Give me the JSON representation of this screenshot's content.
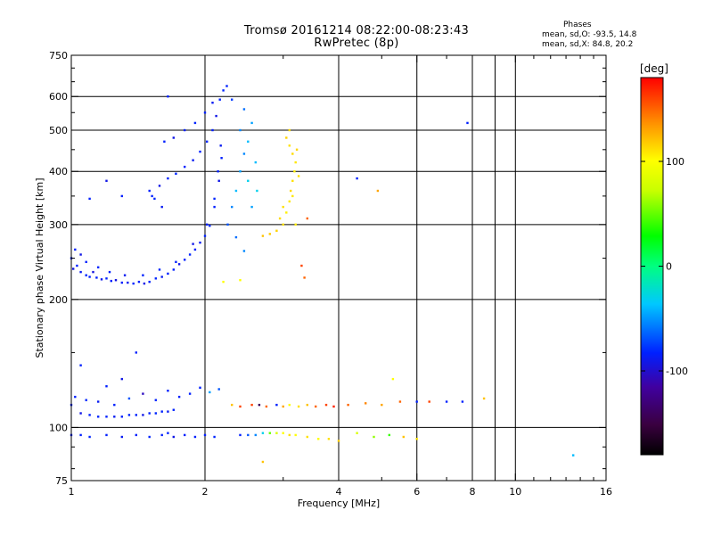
{
  "title": {
    "line1": "Tromsø 20161214 08:22:00-08:23:43",
    "line2": "RwPretec (8p)"
  },
  "stats": {
    "heading": "Phases",
    "o_mode": "mean, sd,O: -93.5, 14.8",
    "x_mode": "mean, sd,X:  84.8, 20.2"
  },
  "colorbar": {
    "unit": "[deg]",
    "range": [
      -180,
      180
    ],
    "ticks": [
      {
        "value": 100,
        "label": "100"
      },
      {
        "value": 0,
        "label": "0"
      },
      {
        "value": -100,
        "label": "-100"
      }
    ],
    "colormap": "rainbow (black-purple-blue-cyan-green-yellow-orange-red)"
  },
  "chart_data": {
    "type": "scatter",
    "xlabel": "Frequency [MHz]",
    "ylabel": "Stationary phase Virtual Height [km]",
    "xscale": "log",
    "yscale": "log",
    "xlim": [
      1,
      16
    ],
    "ylim": [
      75,
      750
    ],
    "x_ticks": [
      {
        "value": 1,
        "label": "1"
      },
      {
        "value": 2,
        "label": "2"
      },
      {
        "value": 4,
        "label": "4"
      },
      {
        "value": 6,
        "label": "6"
      },
      {
        "value": 8,
        "label": "8"
      },
      {
        "value": 10,
        "label": "10"
      },
      {
        "value": 16,
        "label": "16"
      }
    ],
    "y_ticks": [
      {
        "value": 75,
        "label": "75"
      },
      {
        "value": 100,
        "label": "100"
      },
      {
        "value": 200,
        "label": "200"
      },
      {
        "value": 300,
        "label": "300"
      },
      {
        "value": 400,
        "label": "400"
      },
      {
        "value": 500,
        "label": "500"
      },
      {
        "value": 600,
        "label": "600"
      },
      {
        "value": 750,
        "label": "750"
      }
    ],
    "x_grid": [
      2,
      4,
      6,
      8,
      9,
      10
    ],
    "y_grid": [
      100,
      200,
      300,
      400,
      500,
      600
    ],
    "point_fields": [
      "freq_MHz",
      "height_km",
      "phase_deg"
    ],
    "points": [
      [
        1.0,
        250,
        -100
      ],
      [
        1.01,
        236,
        -105
      ],
      [
        1.03,
        240,
        -100
      ],
      [
        1.05,
        232,
        -102
      ],
      [
        1.08,
        228,
        -98
      ],
      [
        1.1,
        226,
        -100
      ],
      [
        1.12,
        232,
        -105
      ],
      [
        1.14,
        225,
        -100
      ],
      [
        1.17,
        223,
        -103
      ],
      [
        1.2,
        224,
        -98
      ],
      [
        1.23,
        221,
        -100
      ],
      [
        1.26,
        222,
        -105
      ],
      [
        1.3,
        219,
        -100
      ],
      [
        1.34,
        219,
        -102
      ],
      [
        1.38,
        218,
        -98
      ],
      [
        1.42,
        220,
        -100
      ],
      [
        1.46,
        218,
        -104
      ],
      [
        1.5,
        220,
        -100
      ],
      [
        1.55,
        224,
        -98
      ],
      [
        1.6,
        226,
        -102
      ],
      [
        1.65,
        230,
        -100
      ],
      [
        1.7,
        235,
        -100
      ],
      [
        1.75,
        242,
        -104
      ],
      [
        1.8,
        248,
        -100
      ],
      [
        1.85,
        255,
        -98
      ],
      [
        1.9,
        262,
        -100
      ],
      [
        1.95,
        272,
        -102
      ],
      [
        2.0,
        282,
        -100
      ],
      [
        2.05,
        298,
        -98
      ],
      [
        2.1,
        330,
        -100
      ],
      [
        2.15,
        380,
        -104
      ],
      [
        2.18,
        430,
        -100
      ],
      [
        1.02,
        262,
        -100
      ],
      [
        1.05,
        255,
        -104
      ],
      [
        1.08,
        245,
        -100
      ],
      [
        1.15,
        238,
        -98
      ],
      [
        1.22,
        232,
        -100
      ],
      [
        1.32,
        228,
        -102
      ],
      [
        1.45,
        228,
        -100
      ],
      [
        1.58,
        235,
        -98
      ],
      [
        1.72,
        245,
        -100
      ],
      [
        1.88,
        270,
        -104
      ],
      [
        2.02,
        300,
        -100
      ],
      [
        2.1,
        345,
        -98
      ],
      [
        2.14,
        400,
        -100
      ],
      [
        2.17,
        460,
        -102
      ],
      [
        1.52,
        350,
        -100
      ],
      [
        1.58,
        370,
        -104
      ],
      [
        1.65,
        385,
        -100
      ],
      [
        1.72,
        395,
        -98
      ],
      [
        1.8,
        410,
        -100
      ],
      [
        1.88,
        425,
        -102
      ],
      [
        1.95,
        445,
        -100
      ],
      [
        2.02,
        470,
        -98
      ],
      [
        2.08,
        500,
        -100
      ],
      [
        2.12,
        540,
        -104
      ],
      [
        2.16,
        590,
        -100
      ],
      [
        2.2,
        620,
        -98
      ],
      [
        2.24,
        635,
        -100
      ],
      [
        1.62,
        470,
        -100
      ],
      [
        1.7,
        480,
        -104
      ],
      [
        1.8,
        500,
        -100
      ],
      [
        1.9,
        520,
        -98
      ],
      [
        2.0,
        550,
        -100
      ],
      [
        2.08,
        580,
        -102
      ],
      [
        1.65,
        600,
        -100
      ],
      [
        1.5,
        360,
        -100
      ],
      [
        1.54,
        345,
        -98
      ],
      [
        1.6,
        330,
        -102
      ],
      [
        1.3,
        350,
        -100
      ],
      [
        1.2,
        380,
        -104
      ],
      [
        1.1,
        345,
        -100
      ],
      [
        2.25,
        300,
        -80
      ],
      [
        2.3,
        330,
        -60
      ],
      [
        2.35,
        360,
        -40
      ],
      [
        2.4,
        400,
        -50
      ],
      [
        2.45,
        440,
        -60
      ],
      [
        2.5,
        470,
        -40
      ],
      [
        2.4,
        500,
        -60
      ],
      [
        2.45,
        560,
        -70
      ],
      [
        2.3,
        590,
        -90
      ],
      [
        2.55,
        520,
        -50
      ],
      [
        2.5,
        380,
        -30
      ],
      [
        2.6,
        420,
        -40
      ],
      [
        2.62,
        360,
        -30
      ],
      [
        2.55,
        330,
        -50
      ],
      [
        2.35,
        280,
        -70
      ],
      [
        2.45,
        260,
        -60
      ],
      [
        2.7,
        282,
        120
      ],
      [
        2.8,
        285,
        118
      ],
      [
        2.9,
        290,
        115
      ],
      [
        3.0,
        300,
        110
      ],
      [
        3.05,
        320,
        105
      ],
      [
        3.1,
        340,
        108
      ],
      [
        3.12,
        360,
        112
      ],
      [
        3.15,
        380,
        110
      ],
      [
        3.18,
        400,
        105
      ],
      [
        3.2,
        420,
        108
      ],
      [
        3.15,
        440,
        112
      ],
      [
        3.1,
        460,
        110
      ],
      [
        3.05,
        480,
        115
      ],
      [
        3.1,
        500,
        112
      ],
      [
        3.15,
        350,
        108
      ],
      [
        3.0,
        330,
        110
      ],
      [
        2.95,
        310,
        112
      ],
      [
        3.2,
        300,
        106
      ],
      [
        3.25,
        390,
        110
      ],
      [
        3.22,
        450,
        114
      ],
      [
        3.4,
        310,
        150
      ],
      [
        3.3,
        240,
        160
      ],
      [
        3.35,
        225,
        150
      ],
      [
        4.4,
        385,
        -100
      ],
      [
        4.9,
        360,
        130
      ],
      [
        7.8,
        520,
        -100
      ],
      [
        1.0,
        113,
        -100
      ],
      [
        1.05,
        108,
        -104
      ],
      [
        1.1,
        107,
        -100
      ],
      [
        1.15,
        106,
        -98
      ],
      [
        1.2,
        106,
        -100
      ],
      [
        1.25,
        106,
        -102
      ],
      [
        1.3,
        106,
        -100
      ],
      [
        1.35,
        107,
        -98
      ],
      [
        1.4,
        107,
        -100
      ],
      [
        1.45,
        107,
        -104
      ],
      [
        1.5,
        108,
        -100
      ],
      [
        1.55,
        108,
        -98
      ],
      [
        1.6,
        109,
        -100
      ],
      [
        1.65,
        109,
        -102
      ],
      [
        1.7,
        110,
        -100
      ],
      [
        1.02,
        118,
        -100
      ],
      [
        1.08,
        116,
        -98
      ],
      [
        1.15,
        115,
        -102
      ],
      [
        1.25,
        113,
        -100
      ],
      [
        1.35,
        117,
        -80
      ],
      [
        1.45,
        120,
        -110
      ],
      [
        1.55,
        116,
        -100
      ],
      [
        1.65,
        122,
        -100
      ],
      [
        1.2,
        125,
        -100
      ],
      [
        1.3,
        130,
        -104
      ],
      [
        1.4,
        150,
        -100
      ],
      [
        1.75,
        118,
        -100
      ],
      [
        1.85,
        120,
        -100
      ],
      [
        1.95,
        124,
        -100
      ],
      [
        2.05,
        121,
        -50
      ],
      [
        2.15,
        123,
        -80
      ],
      [
        2.3,
        113,
        120
      ],
      [
        2.4,
        112,
        160
      ],
      [
        2.55,
        113,
        160
      ],
      [
        2.65,
        113,
        -140
      ],
      [
        2.75,
        112,
        150
      ],
      [
        2.9,
        113,
        -100
      ],
      [
        3.0,
        112,
        130
      ],
      [
        3.1,
        113,
        100
      ],
      [
        3.25,
        112,
        110
      ],
      [
        3.4,
        113,
        120
      ],
      [
        3.55,
        112,
        150
      ],
      [
        3.75,
        113,
        160
      ],
      [
        3.9,
        112,
        170
      ],
      [
        4.2,
        113,
        150
      ],
      [
        4.6,
        114,
        140
      ],
      [
        5.0,
        113,
        130
      ],
      [
        5.5,
        115,
        150
      ],
      [
        6.0,
        115,
        -100
      ],
      [
        6.4,
        115,
        160
      ],
      [
        7.0,
        115,
        -100
      ],
      [
        7.6,
        115,
        -100
      ],
      [
        8.5,
        117,
        120
      ],
      [
        5.3,
        130,
        100
      ],
      [
        1.65,
        97,
        -100
      ],
      [
        1.0,
        96,
        -100
      ],
      [
        1.05,
        96,
        -100
      ],
      [
        1.1,
        95,
        -98
      ],
      [
        1.2,
        96,
        -100
      ],
      [
        1.3,
        95,
        -102
      ],
      [
        1.4,
        96,
        -100
      ],
      [
        1.5,
        95,
        -98
      ],
      [
        1.6,
        96,
        -100
      ],
      [
        1.7,
        95,
        -104
      ],
      [
        1.8,
        96,
        -100
      ],
      [
        1.9,
        95,
        -100
      ],
      [
        2.0,
        96,
        -100
      ],
      [
        2.1,
        95,
        -98
      ],
      [
        2.4,
        96,
        -100
      ],
      [
        2.5,
        96,
        -80
      ],
      [
        2.6,
        96,
        -60
      ],
      [
        2.7,
        97,
        -30
      ],
      [
        2.8,
        97,
        50
      ],
      [
        2.9,
        97,
        80
      ],
      [
        3.0,
        97,
        100
      ],
      [
        3.1,
        96,
        110
      ],
      [
        3.2,
        96,
        100
      ],
      [
        3.4,
        95,
        110
      ],
      [
        3.6,
        94,
        100
      ],
      [
        3.8,
        94,
        110
      ],
      [
        4.0,
        93,
        115
      ],
      [
        4.4,
        97,
        80
      ],
      [
        4.8,
        95,
        60
      ],
      [
        5.2,
        96,
        40
      ],
      [
        5.6,
        95,
        120
      ],
      [
        6.0,
        94,
        110
      ],
      [
        2.7,
        83,
        120
      ],
      [
        13.5,
        86,
        -40
      ],
      [
        1.05,
        140,
        -100
      ],
      [
        2.2,
        220,
        100
      ],
      [
        2.4,
        222,
        100
      ]
    ]
  }
}
